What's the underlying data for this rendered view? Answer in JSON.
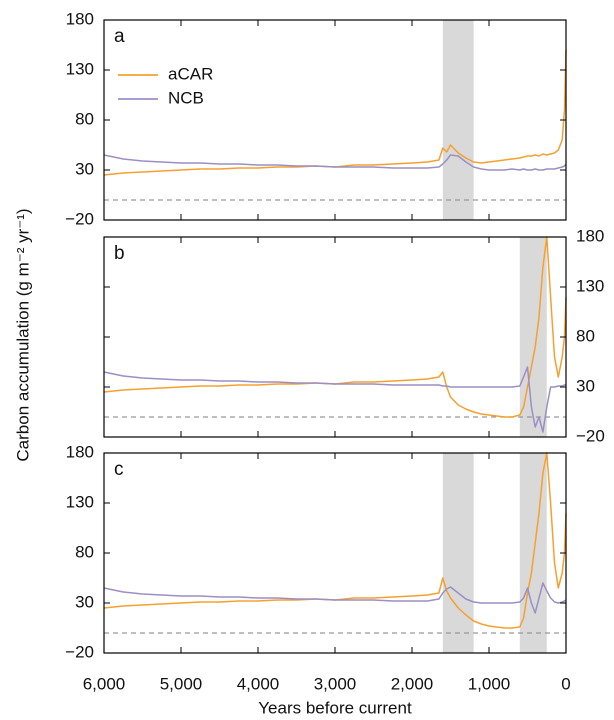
{
  "chart_data": [
    {
      "type": "line",
      "panel_label": "a",
      "legend": "upper left",
      "x": [
        6000,
        5750,
        5500,
        5250,
        5000,
        4750,
        4500,
        4250,
        4000,
        3750,
        3500,
        3250,
        3000,
        2750,
        2500,
        2250,
        2000,
        1800,
        1650,
        1600,
        1550,
        1500,
        1400,
        1300,
        1200,
        1100,
        1000,
        900,
        800,
        700,
        600,
        550,
        500,
        450,
        400,
        350,
        300,
        250,
        200,
        150,
        100,
        50,
        20,
        0
      ],
      "series": [
        {
          "name": "aCAR",
          "color": "#f5a030",
          "values": [
            25,
            27,
            28,
            29,
            30,
            31,
            31,
            32,
            32,
            33,
            33,
            34,
            33,
            35,
            35,
            36,
            37,
            38,
            40,
            52,
            48,
            55,
            47,
            42,
            38,
            37,
            38,
            39,
            40,
            41,
            42,
            43,
            44,
            44,
            45,
            44,
            46,
            45,
            46,
            47,
            50,
            60,
            90,
            150
          ]
        },
        {
          "name": "NCB",
          "color": "#9b8fc4",
          "values": [
            45,
            41,
            39,
            38,
            37,
            37,
            36,
            36,
            35,
            35,
            34,
            34,
            33,
            33,
            33,
            32,
            32,
            32,
            33,
            36,
            40,
            45,
            44,
            38,
            33,
            31,
            30,
            30,
            30,
            31,
            30,
            31,
            30,
            30,
            31,
            30,
            30,
            31,
            31,
            31,
            32,
            33,
            34,
            36
          ]
        }
      ],
      "xlim": [
        6000,
        0
      ],
      "ylim": [
        -20,
        180
      ],
      "yticks": [
        {
          "value": -20,
          "label": "−20"
        },
        30,
        80,
        130,
        180
      ],
      "yaxis_side": "left",
      "xticks": [
        6000,
        5000,
        4000,
        3000,
        2000,
        1000,
        0
      ],
      "shaded": [
        [
          1600,
          1200
        ]
      ],
      "hline": 0
    },
    {
      "type": "line",
      "panel_label": "b",
      "x": [
        6000,
        5750,
        5500,
        5250,
        5000,
        4750,
        4500,
        4250,
        4000,
        3750,
        3500,
        3250,
        3000,
        2750,
        2500,
        2250,
        2000,
        1800,
        1650,
        1600,
        1550,
        1500,
        1400,
        1300,
        1200,
        1100,
        1000,
        900,
        800,
        700,
        600,
        550,
        500,
        450,
        400,
        350,
        300,
        250,
        200,
        150,
        100,
        50,
        20,
        0
      ],
      "series": [
        {
          "color": "#f5a030",
          "values": [
            25,
            27,
            28,
            29,
            30,
            31,
            31,
            32,
            32,
            33,
            33,
            34,
            33,
            35,
            35,
            36,
            37,
            38,
            40,
            45,
            30,
            20,
            12,
            8,
            5,
            3,
            2,
            1,
            0,
            0,
            2,
            10,
            30,
            50,
            70,
            100,
            150,
            180,
            120,
            60,
            40,
            60,
            80,
            120
          ]
        },
        {
          "color": "#9b8fc4",
          "values": [
            45,
            41,
            39,
            38,
            37,
            37,
            36,
            36,
            35,
            35,
            34,
            34,
            33,
            33,
            33,
            32,
            32,
            32,
            32,
            31,
            31,
            30,
            30,
            30,
            30,
            30,
            30,
            30,
            30,
            30,
            31,
            40,
            50,
            10,
            -10,
            0,
            -15,
            10,
            30,
            30,
            31,
            31,
            32,
            32
          ]
        }
      ],
      "xlim": [
        6000,
        0
      ],
      "ylim": [
        -20,
        180
      ],
      "yticks": [
        {
          "value": -20,
          "label": "−20"
        },
        30,
        80,
        130,
        180
      ],
      "yaxis_side": "right",
      "xticks": [
        6000,
        5000,
        4000,
        3000,
        2000,
        1000,
        0
      ],
      "shaded": [
        [
          600,
          250
        ]
      ],
      "hline": 0
    },
    {
      "type": "line",
      "panel_label": "c",
      "x": [
        6000,
        5750,
        5500,
        5250,
        5000,
        4750,
        4500,
        4250,
        4000,
        3750,
        3500,
        3250,
        3000,
        2750,
        2500,
        2250,
        2000,
        1800,
        1650,
        1600,
        1550,
        1500,
        1400,
        1300,
        1200,
        1100,
        1000,
        900,
        800,
        700,
        600,
        550,
        500,
        450,
        400,
        350,
        300,
        250,
        200,
        150,
        100,
        50,
        20,
        0
      ],
      "series": [
        {
          "color": "#f5a030",
          "values": [
            25,
            27,
            28,
            29,
            30,
            31,
            31,
            32,
            32,
            33,
            33,
            34,
            33,
            35,
            35,
            36,
            37,
            38,
            40,
            55,
            42,
            35,
            25,
            18,
            12,
            9,
            7,
            6,
            5,
            5,
            6,
            15,
            40,
            60,
            90,
            120,
            160,
            180,
            130,
            70,
            45,
            60,
            80,
            120
          ]
        },
        {
          "color": "#9b8fc4",
          "values": [
            45,
            41,
            39,
            38,
            37,
            37,
            36,
            36,
            35,
            35,
            34,
            34,
            33,
            33,
            33,
            32,
            32,
            32,
            34,
            40,
            44,
            46,
            40,
            34,
            31,
            30,
            30,
            30,
            30,
            30,
            31,
            35,
            45,
            30,
            20,
            35,
            50,
            42,
            35,
            31,
            30,
            31,
            32,
            33
          ]
        }
      ],
      "xlim": [
        6000,
        0
      ],
      "ylim": [
        -20,
        180
      ],
      "yticks": [
        {
          "value": -20,
          "label": "−20"
        },
        30,
        80,
        130,
        180
      ],
      "yaxis_side": "left",
      "xticks": [
        {
          "value": 6000,
          "label": "6,000"
        },
        {
          "value": 5000,
          "label": "5,000"
        },
        {
          "value": 4000,
          "label": "4,000"
        },
        {
          "value": 3000,
          "label": "3,000"
        },
        {
          "value": 2000,
          "label": "2,000"
        },
        {
          "value": 1000,
          "label": "1,000"
        },
        0
      ],
      "xlabel": "Years before current",
      "shaded": [
        [
          1600,
          1200
        ],
        [
          600,
          250
        ]
      ],
      "hline": 0
    }
  ],
  "ylabel": "Carbon accumulation (g m⁻² yr⁻¹)"
}
